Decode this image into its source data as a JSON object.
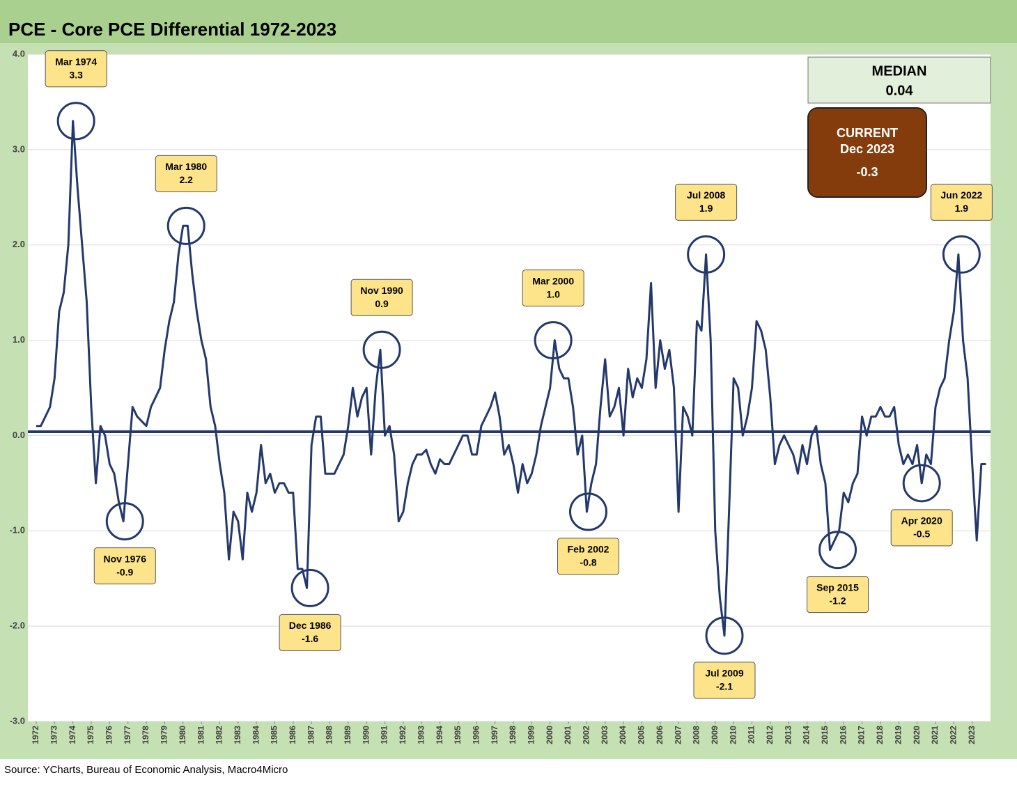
{
  "chart_data": {
    "type": "line",
    "title": "PCE - Core PCE Differential 1972-2023",
    "source": "Source: YCharts, Bureau of Economic Analysis, Macro4Micro",
    "xlim": [
      1972,
      2024
    ],
    "xticks": [
      1972,
      1973,
      1974,
      1975,
      1976,
      1977,
      1978,
      1979,
      1980,
      1981,
      1982,
      1983,
      1984,
      1985,
      1986,
      1987,
      1988,
      1989,
      1990,
      1991,
      1992,
      1993,
      1994,
      1995,
      1996,
      1997,
      1998,
      1999,
      2000,
      2001,
      2002,
      2003,
      2004,
      2005,
      2006,
      2007,
      2008,
      2009,
      2010,
      2011,
      2012,
      2013,
      2014,
      2015,
      2016,
      2017,
      2018,
      2019,
      2020,
      2021,
      2022,
      2023
    ],
    "ylim": [
      -3,
      4
    ],
    "yticks": [
      {
        "value": -3,
        "label": "-3.0"
      },
      {
        "value": -2,
        "label": "-2.0"
      },
      {
        "value": -1,
        "label": "-1.0"
      },
      {
        "value": 0,
        "label": "0.0"
      },
      {
        "value": 1,
        "label": "1.0"
      },
      {
        "value": 2,
        "label": "2.0"
      },
      {
        "value": 3,
        "label": "3.0"
      },
      {
        "value": 4,
        "label": "4.0"
      }
    ],
    "grid": true,
    "series": [
      {
        "color": "#23396b",
        "x": [
          1972,
          1972.25,
          1972.5,
          1972.75,
          1973,
          1973.25,
          1973.5,
          1973.75,
          1974,
          1974.25,
          1974.5,
          1974.75,
          1975,
          1975.25,
          1975.5,
          1975.75,
          1976,
          1976.25,
          1976.5,
          1976.75,
          1977,
          1977.25,
          1977.5,
          1977.75,
          1978,
          1978.25,
          1978.5,
          1978.75,
          1979,
          1979.25,
          1979.5,
          1979.75,
          1980,
          1980.25,
          1980.5,
          1980.75,
          1981,
          1981.25,
          1981.5,
          1981.75,
          1982,
          1982.25,
          1982.5,
          1982.75,
          1983,
          1983.25,
          1983.5,
          1983.75,
          1984,
          1984.25,
          1984.5,
          1984.75,
          1985,
          1985.25,
          1985.5,
          1985.75,
          1986,
          1986.25,
          1986.5,
          1986.75,
          1987,
          1987.25,
          1987.5,
          1987.75,
          1988,
          1988.25,
          1988.5,
          1988.75,
          1989,
          1989.25,
          1989.5,
          1989.75,
          1990,
          1990.25,
          1990.5,
          1990.75,
          1991,
          1991.25,
          1991.5,
          1991.75,
          1992,
          1992.25,
          1992.5,
          1992.75,
          1993,
          1993.25,
          1993.5,
          1993.75,
          1994,
          1994.25,
          1994.5,
          1994.75,
          1995,
          1995.25,
          1995.5,
          1995.75,
          1996,
          1996.25,
          1996.5,
          1996.75,
          1997,
          1997.25,
          1997.5,
          1997.75,
          1998,
          1998.25,
          1998.5,
          1998.75,
          1999,
          1999.25,
          1999.5,
          1999.75,
          2000,
          2000.25,
          2000.5,
          2000.75,
          2001,
          2001.25,
          2001.5,
          2001.75,
          2002,
          2002.25,
          2002.5,
          2002.75,
          2003,
          2003.25,
          2003.5,
          2003.75,
          2004,
          2004.25,
          2004.5,
          2004.75,
          2005,
          2005.25,
          2005.5,
          2005.75,
          2006,
          2006.25,
          2006.5,
          2006.75,
          2007,
          2007.25,
          2007.5,
          2007.75,
          2008,
          2008.25,
          2008.5,
          2008.75,
          2009,
          2009.25,
          2009.5,
          2009.75,
          2010,
          2010.25,
          2010.5,
          2010.75,
          2011,
          2011.25,
          2011.5,
          2011.75,
          2012,
          2012.25,
          2012.5,
          2012.75,
          2013,
          2013.25,
          2013.5,
          2013.75,
          2014,
          2014.25,
          2014.5,
          2014.75,
          2015,
          2015.25,
          2015.5,
          2015.75,
          2016,
          2016.25,
          2016.5,
          2016.75,
          2017,
          2017.25,
          2017.5,
          2017.75,
          2018,
          2018.25,
          2018.5,
          2018.75,
          2019,
          2019.25,
          2019.5,
          2019.75,
          2020,
          2020.25,
          2020.5,
          2020.75,
          2021,
          2021.25,
          2021.5,
          2021.75,
          2022,
          2022.25,
          2022.5,
          2022.75,
          2023,
          2023.25,
          2023.5,
          2023.75
        ],
        "values": [
          0.1,
          0.1,
          0.2,
          0.3,
          0.6,
          1.3,
          1.5,
          2.0,
          3.3,
          2.6,
          2.0,
          1.4,
          0.3,
          -0.5,
          0.1,
          0.0,
          -0.3,
          -0.4,
          -0.7,
          -0.9,
          -0.3,
          0.3,
          0.2,
          0.15,
          0.1,
          0.3,
          0.4,
          0.5,
          0.9,
          1.2,
          1.4,
          1.9,
          2.2,
          2.2,
          1.7,
          1.3,
          1.0,
          0.8,
          0.3,
          0.1,
          -0.3,
          -0.6,
          -1.3,
          -0.8,
          -0.9,
          -1.3,
          -0.6,
          -0.8,
          -0.6,
          -0.1,
          -0.5,
          -0.4,
          -0.6,
          -0.5,
          -0.5,
          -0.6,
          -0.6,
          -1.4,
          -1.4,
          -1.6,
          -0.1,
          0.2,
          0.2,
          -0.4,
          -0.4,
          -0.4,
          -0.3,
          -0.2,
          0.1,
          0.5,
          0.2,
          0.4,
          0.5,
          -0.2,
          0.5,
          0.9,
          0.0,
          0.1,
          -0.2,
          -0.9,
          -0.8,
          -0.5,
          -0.3,
          -0.2,
          -0.2,
          -0.15,
          -0.3,
          -0.4,
          -0.25,
          -0.3,
          -0.3,
          -0.2,
          -0.1,
          0.0,
          0.0,
          -0.2,
          -0.2,
          0.1,
          0.2,
          0.3,
          0.45,
          0.2,
          -0.2,
          -0.1,
          -0.3,
          -0.6,
          -0.3,
          -0.5,
          -0.4,
          -0.2,
          0.1,
          0.3,
          0.5,
          1.0,
          0.7,
          0.6,
          0.6,
          0.3,
          -0.2,
          0.0,
          -0.8,
          -0.5,
          -0.3,
          0.3,
          0.8,
          0.2,
          0.3,
          0.5,
          0.0,
          0.7,
          0.4,
          0.6,
          0.5,
          0.8,
          1.6,
          0.5,
          1.0,
          0.7,
          0.9,
          0.5,
          -0.8,
          0.3,
          0.2,
          0.0,
          1.2,
          1.1,
          1.9,
          1.0,
          -1.0,
          -1.7,
          -2.1,
          -0.8,
          0.6,
          0.5,
          0.0,
          0.2,
          0.5,
          1.2,
          1.1,
          0.9,
          0.4,
          -0.3,
          -0.1,
          0.0,
          -0.1,
          -0.2,
          -0.4,
          -0.1,
          -0.3,
          0.0,
          0.1,
          -0.3,
          -0.5,
          -1.2,
          -1.1,
          -1.0,
          -0.6,
          -0.7,
          -0.5,
          -0.4,
          0.2,
          0.0,
          0.2,
          0.2,
          0.3,
          0.2,
          0.2,
          0.3,
          -0.1,
          -0.3,
          -0.2,
          -0.3,
          -0.1,
          -0.5,
          -0.2,
          -0.3,
          0.3,
          0.5,
          0.6,
          1.0,
          1.3,
          1.9,
          1.0,
          0.6,
          -0.3,
          -1.1,
          -0.3,
          -0.3
        ]
      }
    ],
    "median": {
      "label": "MEDIAN",
      "value": 0.04
    },
    "current": {
      "label": "CURRENT",
      "date": "Dec 2023",
      "value": -0.3
    },
    "annotations": [
      {
        "date": "Mar 1974",
        "x": 1974.17,
        "value": 3.3
      },
      {
        "date": "Nov 1976",
        "x": 1976.83,
        "value": -0.9
      },
      {
        "date": "Mar 1980",
        "x": 1980.17,
        "value": 2.2
      },
      {
        "date": "Dec 1986",
        "x": 1986.92,
        "value": -1.6
      },
      {
        "date": "Nov 1990",
        "x": 1990.83,
        "value": 0.9
      },
      {
        "date": "Mar 2000",
        "x": 2000.17,
        "value": 1,
        "value_label": "1.0"
      },
      {
        "date": "Feb 2002",
        "x": 2002.08,
        "value": -0.8
      },
      {
        "date": "Jul 2008",
        "x": 2008.5,
        "value": 1.9
      },
      {
        "date": "Jul 2009",
        "x": 2009.5,
        "value": -2.1
      },
      {
        "date": "Sep 2015",
        "x": 2015.67,
        "value": -1.2
      },
      {
        "date": "Apr 2020",
        "x": 2020.25,
        "value": -0.5
      },
      {
        "date": "Jun 2022",
        "x": 2022.42,
        "value": 1.9
      }
    ]
  }
}
